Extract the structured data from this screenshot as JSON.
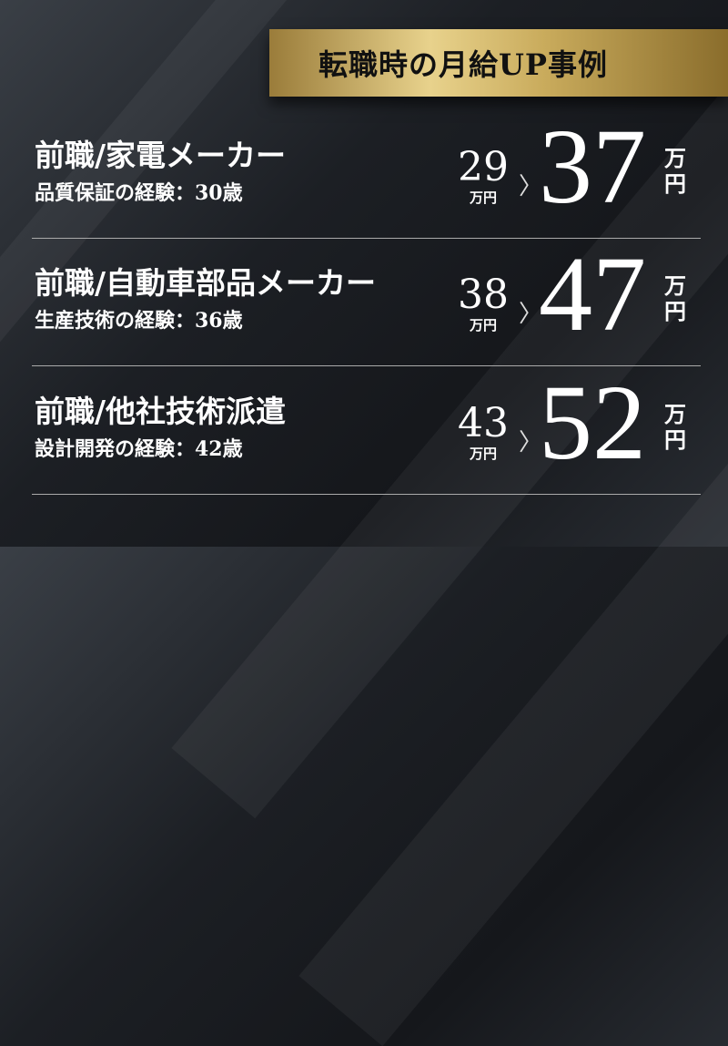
{
  "header": {
    "title": "転職時の月給UP事例"
  },
  "cases": [
    {
      "title": "前職/家電メーカー",
      "subtitle": "品質保証の経験：30歳",
      "before": "29",
      "before_unit": "万円",
      "after": "37",
      "after_unit_1": "万",
      "after_unit_2": "円"
    },
    {
      "title": "前職/自動車部品メーカー",
      "subtitle": "生産技術の経験：36歳",
      "before": "38",
      "before_unit": "万円",
      "after": "47",
      "after_unit_1": "万",
      "after_unit_2": "円"
    },
    {
      "title": "前職/他社技術派遣",
      "subtitle": "設計開発の経験：42歳",
      "before": "43",
      "before_unit": "万円",
      "after": "52",
      "after_unit_1": "万",
      "after_unit_2": "円"
    }
  ],
  "icons": {
    "arrow": "chevron-right-icon"
  },
  "colors": {
    "gold": "#d4b96e",
    "background": "#1c1f24"
  }
}
